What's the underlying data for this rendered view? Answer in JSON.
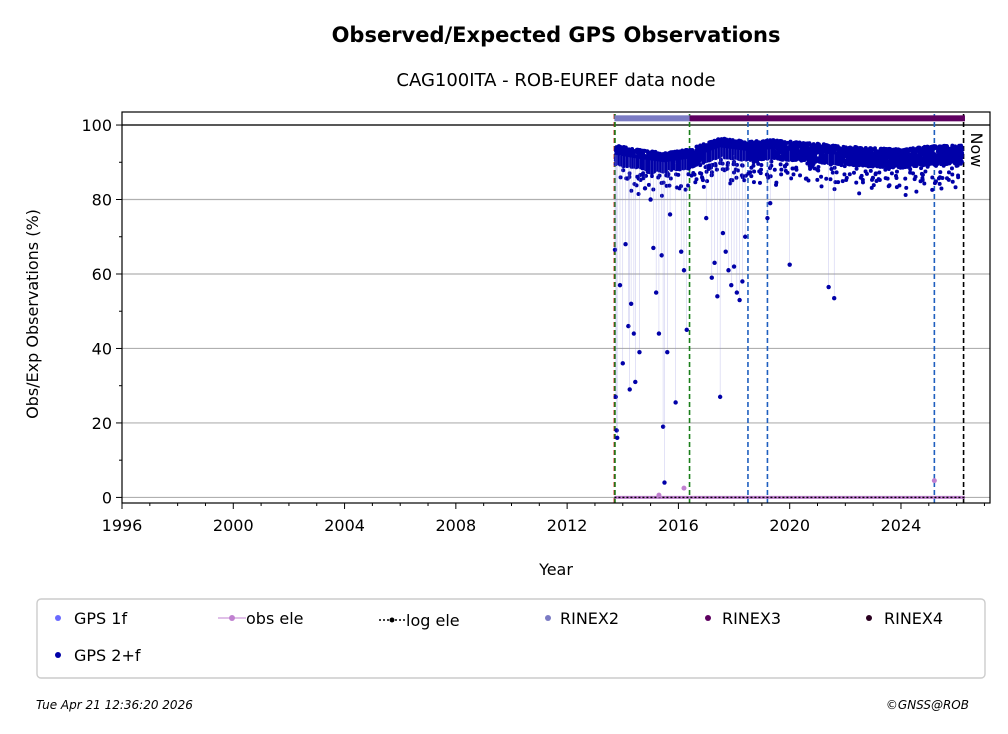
{
  "chart_data": {
    "type": "scatter",
    "title": "Observed/Expected GPS Observations",
    "subtitle": "CAG100ITA - ROB-EUREF data node",
    "xlabel": "Year",
    "ylabel": "Obs/Exp Observations (%)",
    "xlim": [
      1996,
      2027.2
    ],
    "ylim": [
      -1.5,
      103.5
    ],
    "xticks": [
      1996,
      2000,
      2004,
      2008,
      2012,
      2016,
      2020,
      2024
    ],
    "yticks": [
      0,
      20,
      40,
      60,
      80,
      100
    ],
    "grid": "horizontal",
    "now_label": "Now",
    "now_year": 2026.3,
    "reference_line": 100,
    "rinex_bars": [
      {
        "name": "RINEX2",
        "start": 2013.7,
        "end": 2016.4,
        "color": "#7b7bc4"
      },
      {
        "name": "RINEX3",
        "start": 2016.4,
        "end": 2026.3,
        "color": "#5e0060"
      }
    ],
    "event_lines": [
      {
        "x": 2013.7,
        "color": "#cc0000",
        "style": "dashed"
      },
      {
        "x": 2013.72,
        "color": "#1a7f1a",
        "style": "dashed"
      },
      {
        "x": 2016.4,
        "color": "#1a7f1a",
        "style": "dashed"
      },
      {
        "x": 2018.5,
        "color": "#1f5fbf",
        "style": "dashed"
      },
      {
        "x": 2019.2,
        "color": "#1f5fbf",
        "style": "dashed"
      },
      {
        "x": 2025.2,
        "color": "#1f5fbf",
        "style": "dashed"
      },
      {
        "x": 2026.25,
        "color": "#000000",
        "style": "dashed"
      }
    ],
    "series": [
      {
        "name": "GPS 2+f",
        "color": "#0000a8",
        "trend": [
          [
            2013.75,
            92
          ],
          [
            2014.5,
            91
          ],
          [
            2015.5,
            90
          ],
          [
            2016.4,
            91
          ],
          [
            2017.5,
            94
          ],
          [
            2018.5,
            93
          ],
          [
            2019.3,
            93.5
          ],
          [
            2021,
            92.5
          ],
          [
            2022.5,
            91.5
          ],
          [
            2024,
            91
          ],
          [
            2025.3,
            92
          ],
          [
            2026.2,
            92
          ]
        ],
        "outliers": [
          [
            2013.72,
            66.5
          ],
          [
            2013.75,
            27
          ],
          [
            2013.78,
            18
          ],
          [
            2013.8,
            16
          ],
          [
            2013.9,
            57
          ],
          [
            2014.0,
            36
          ],
          [
            2014.1,
            68
          ],
          [
            2014.2,
            46
          ],
          [
            2014.25,
            29
          ],
          [
            2014.3,
            52
          ],
          [
            2014.4,
            44
          ],
          [
            2014.45,
            31
          ],
          [
            2014.6,
            39
          ],
          [
            2014.8,
            83
          ],
          [
            2015.0,
            80
          ],
          [
            2015.1,
            67
          ],
          [
            2015.2,
            55
          ],
          [
            2015.3,
            44
          ],
          [
            2015.4,
            65
          ],
          [
            2015.45,
            19
          ],
          [
            2015.5,
            4
          ],
          [
            2015.6,
            39
          ],
          [
            2015.7,
            76
          ],
          [
            2015.9,
            25.5
          ],
          [
            2016.1,
            66
          ],
          [
            2016.2,
            61
          ],
          [
            2016.3,
            45
          ],
          [
            2017.0,
            75
          ],
          [
            2017.2,
            59
          ],
          [
            2017.3,
            63
          ],
          [
            2017.4,
            54
          ],
          [
            2017.5,
            27
          ],
          [
            2017.6,
            71
          ],
          [
            2017.7,
            66
          ],
          [
            2017.8,
            61
          ],
          [
            2017.9,
            57
          ],
          [
            2018.0,
            62
          ],
          [
            2018.1,
            55
          ],
          [
            2018.2,
            53
          ],
          [
            2018.3,
            58
          ],
          [
            2018.4,
            70
          ],
          [
            2019.2,
            75
          ],
          [
            2019.3,
            79
          ],
          [
            2020.0,
            62.5
          ],
          [
            2021.4,
            56.5
          ],
          [
            2021.6,
            53.5
          ]
        ]
      },
      {
        "name": "GPS 1f",
        "color": "#6a6aff",
        "values_note": "overlaps GPS 2+f"
      },
      {
        "name": "obs ele",
        "color": "#c080d0",
        "points": [
          [
            2016.2,
            2.5
          ],
          [
            2025.2,
            4.5
          ],
          [
            2015.3,
            0.6
          ]
        ]
      },
      {
        "name": "log ele",
        "color": "#000000",
        "level": 0
      }
    ],
    "legend": {
      "location": "below",
      "entries": [
        "GPS 1f",
        "obs ele",
        "log ele",
        "RINEX2",
        "RINEX3",
        "RINEX4",
        "GPS 2+f"
      ]
    }
  },
  "footer": {
    "timestamp": "Tue Apr 21 12:36:20 2026",
    "credit": "©GNSS@ROB"
  }
}
